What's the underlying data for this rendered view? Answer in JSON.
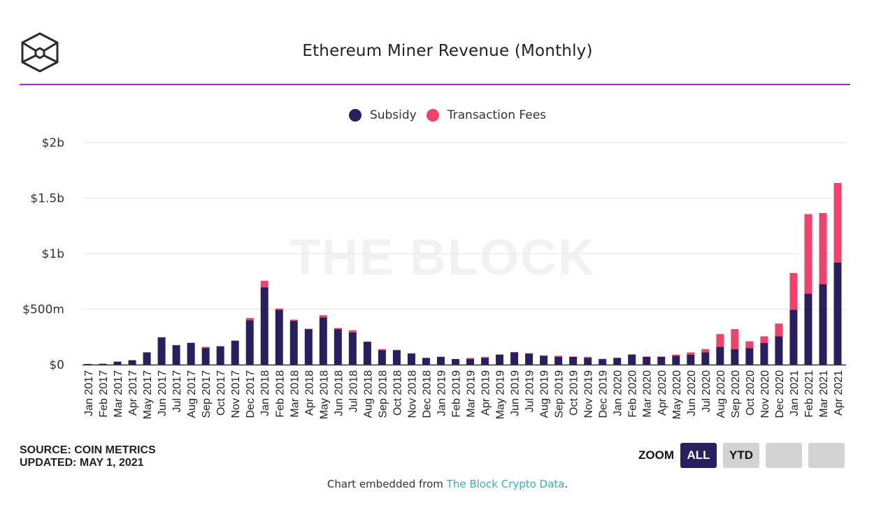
{
  "header": {
    "logo_icon": "the-block-cube-logo",
    "title": "Ethereum Miner Revenue (Monthly)"
  },
  "legend": [
    {
      "label": "Subsidy",
      "color": "#2a1f5e"
    },
    {
      "label": "Transaction Fees",
      "color": "#f0426b"
    }
  ],
  "watermark": "THE BLOCK",
  "footer": {
    "source": "SOURCE: COIN METRICS",
    "updated": "UPDATED: MAY 1, 2021",
    "zoom_label": "ZOOM",
    "zoom_buttons": [
      {
        "label": "ALL",
        "active": true
      },
      {
        "label": "YTD",
        "active": false
      },
      {
        "label": "",
        "active": false
      },
      {
        "label": "",
        "active": false
      }
    ],
    "embed_prefix": "Chart embedded from ",
    "embed_link": "The Block Crypto Data",
    "embed_suffix": "."
  },
  "colors": {
    "accent_rule": "#b224d6",
    "subsidy": "#2a1f5e",
    "fees": "#f0426b",
    "link": "#2bb8b0"
  },
  "chart_data": {
    "type": "bar",
    "stacked": true,
    "title": "Ethereum Miner Revenue (Monthly)",
    "xlabel": "",
    "ylabel": "",
    "ylim": [
      0,
      2000
    ],
    "y_unit": "USD millions",
    "yticks": [
      0,
      500,
      1000,
      1500,
      2000
    ],
    "ytick_labels": [
      "$0",
      "$500m",
      "$1b",
      "$1.5b",
      "$2b"
    ],
    "grid": true,
    "legend_position": "top-center",
    "categories": [
      "Jan 2017",
      "Feb 2017",
      "Mar 2017",
      "Apr 2017",
      "May 2017",
      "Jun 2017",
      "Jul 2017",
      "Aug 2017",
      "Sep 2017",
      "Oct 2017",
      "Nov 2017",
      "Dec 2017",
      "Jan 2018",
      "Feb 2018",
      "Mar 2018",
      "Apr 2018",
      "May 2018",
      "Jun 2018",
      "Jul 2018",
      "Aug 2018",
      "Sep 2018",
      "Oct 2018",
      "Nov 2018",
      "Dec 2018",
      "Jan 2019",
      "Feb 2019",
      "Mar 2019",
      "Apr 2019",
      "May 2019",
      "Jun 2019",
      "Jul 2019",
      "Aug 2019",
      "Sep 2019",
      "Oct 2019",
      "Nov 2019",
      "Dec 2019",
      "Jan 2020",
      "Feb 2020",
      "Mar 2020",
      "Apr 2020",
      "May 2020",
      "Jun 2020",
      "Jul 2020",
      "Aug 2020",
      "Sep 2020",
      "Oct 2020",
      "Nov 2020",
      "Dec 2020",
      "Jan 2021",
      "Feb 2021",
      "Mar 2021",
      "Apr 2021"
    ],
    "series": [
      {
        "name": "Subsidy",
        "color": "#2a1f5e",
        "values": [
          6,
          8,
          27,
          40,
          110,
          245,
          175,
          195,
          150,
          165,
          215,
          400,
          695,
          495,
          395,
          320,
          425,
          320,
          290,
          205,
          130,
          130,
          100,
          60,
          70,
          50,
          50,
          60,
          90,
          110,
          100,
          80,
          70,
          70,
          60,
          50,
          60,
          90,
          70,
          70,
          80,
          90,
          110,
          160,
          140,
          150,
          195,
          255,
          495,
          640,
          725,
          920
        ]
      },
      {
        "name": "Transaction Fees",
        "color": "#f0426b",
        "values": [
          0,
          0,
          0,
          0,
          1,
          2,
          2,
          2,
          10,
          2,
          3,
          20,
          60,
          10,
          10,
          3,
          20,
          10,
          20,
          3,
          10,
          3,
          2,
          1,
          1,
          1,
          10,
          10,
          2,
          3,
          3,
          3,
          10,
          3,
          10,
          2,
          2,
          3,
          3,
          3,
          10,
          20,
          30,
          115,
          180,
          60,
          60,
          115,
          330,
          715,
          640,
          715
        ]
      }
    ]
  }
}
